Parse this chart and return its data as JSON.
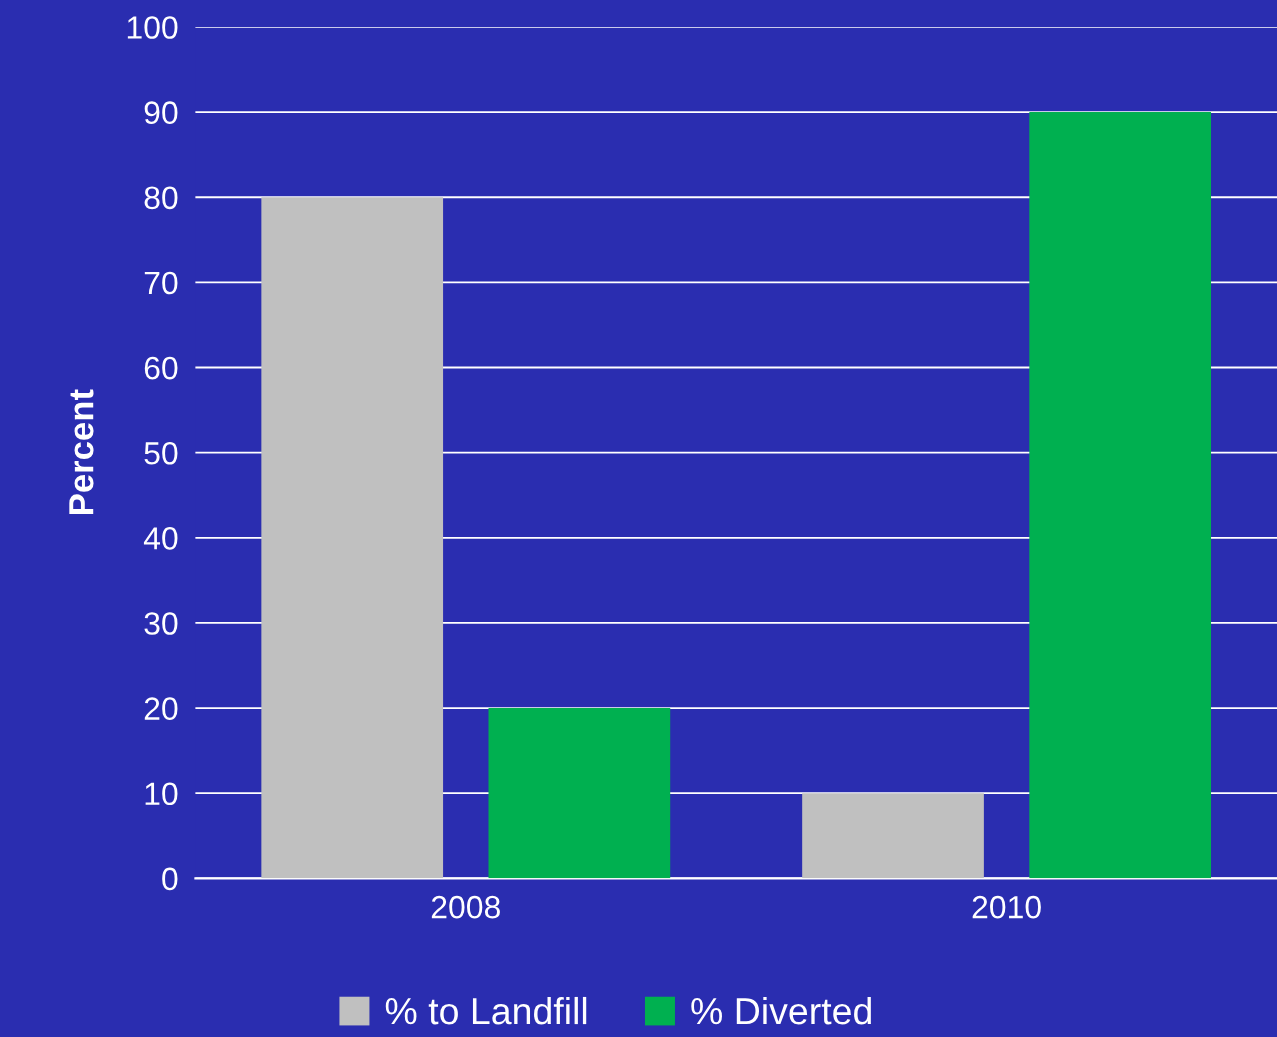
{
  "chart_data": {
    "type": "bar",
    "categories": [
      "2008",
      "2010"
    ],
    "series": [
      {
        "name": "% to Landfill",
        "color": "#c0c0c0",
        "values": [
          80,
          10
        ]
      },
      {
        "name": "% Diverted",
        "color": "#00b050",
        "values": [
          20,
          90
        ]
      }
    ],
    "ylabel": "Percent",
    "ylim": [
      0,
      100
    ],
    "yticks": [
      0,
      10,
      20,
      30,
      40,
      50,
      60,
      70,
      80,
      90,
      100
    ],
    "grid": "y",
    "legend": "bottom"
  }
}
